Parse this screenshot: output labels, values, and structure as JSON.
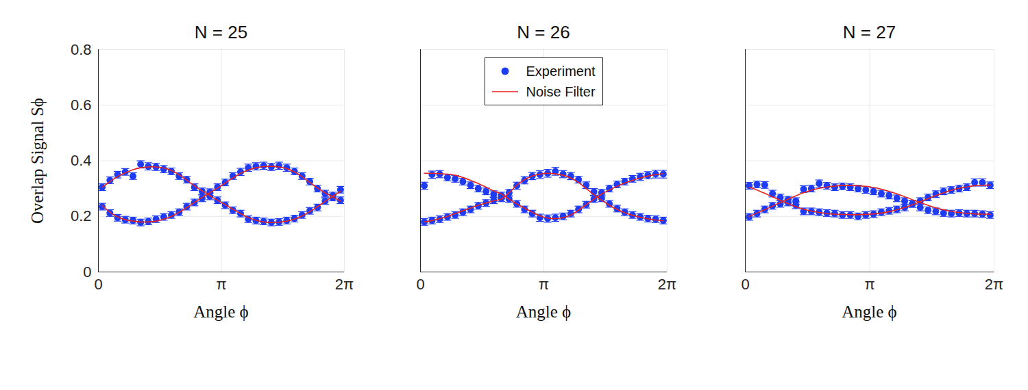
{
  "chart_data": [
    {
      "type": "scatter",
      "title": "N = 25",
      "xlabel": "Angle ϕ",
      "ylabel": "Overlap Signal Sϕ",
      "xlim": [
        0,
        6.28319
      ],
      "xticks": [
        0,
        {
          "value": 3.14159,
          "label": "π"
        },
        {
          "value": 6.28319,
          "label": "2π"
        }
      ],
      "ylim": [
        0,
        0.8
      ],
      "yticks": [
        0,
        0.2,
        0.4,
        0.6,
        0.8
      ],
      "grid": true,
      "x": [
        0.098,
        0.295,
        0.491,
        0.687,
        0.884,
        1.08,
        1.276,
        1.473,
        1.669,
        1.865,
        2.062,
        2.258,
        2.454,
        2.651,
        2.847,
        3.043,
        3.24,
        3.436,
        3.632,
        3.829,
        4.025,
        4.221,
        4.418,
        4.614,
        4.811,
        5.007,
        5.203,
        5.4,
        5.596,
        5.792,
        5.989,
        6.185
      ],
      "series": [
        {
          "name": "Experiment",
          "type": "scatter",
          "marker": "circle",
          "color": "#1f3cf5",
          "values": [
            0.305,
            0.33,
            0.35,
            0.36,
            0.345,
            0.387,
            0.38,
            0.378,
            0.37,
            0.362,
            0.345,
            0.332,
            0.305,
            0.29,
            0.272,
            0.258,
            0.24,
            0.222,
            0.21,
            0.19,
            0.185,
            0.182,
            0.178,
            0.18,
            0.185,
            0.192,
            0.205,
            0.22,
            0.232,
            0.255,
            0.275,
            0.296
          ],
          "errors": [
            0.012,
            0.012,
            0.012,
            0.012,
            0.012,
            0.013,
            0.013,
            0.013,
            0.013,
            0.012,
            0.012,
            0.012,
            0.012,
            0.012,
            0.012,
            0.012,
            0.012,
            0.012,
            0.012,
            0.012,
            0.012,
            0.012,
            0.012,
            0.012,
            0.012,
            0.012,
            0.012,
            0.012,
            0.012,
            0.012,
            0.012,
            0.012
          ]
        },
        {
          "name": "Experiment",
          "type": "scatter",
          "marker": "circle",
          "color": "#1f3cf5",
          "values": [
            0.235,
            0.212,
            0.195,
            0.188,
            0.185,
            0.178,
            0.182,
            0.19,
            0.198,
            0.205,
            0.215,
            0.235,
            0.25,
            0.265,
            0.287,
            0.305,
            0.322,
            0.345,
            0.36,
            0.375,
            0.38,
            0.382,
            0.378,
            0.382,
            0.375,
            0.362,
            0.345,
            0.325,
            0.3,
            0.282,
            0.268,
            0.258
          ],
          "errors": [
            0.012,
            0.012,
            0.012,
            0.012,
            0.012,
            0.012,
            0.012,
            0.012,
            0.012,
            0.012,
            0.012,
            0.012,
            0.012,
            0.012,
            0.012,
            0.012,
            0.012,
            0.012,
            0.013,
            0.013,
            0.013,
            0.013,
            0.013,
            0.013,
            0.013,
            0.012,
            0.012,
            0.012,
            0.012,
            0.012,
            0.012,
            0.012
          ]
        },
        {
          "name": "Noise Filter",
          "type": "line",
          "line_style": "solid",
          "color": "#e8231c",
          "values": [
            0.305,
            0.325,
            0.343,
            0.357,
            0.368,
            0.375,
            0.378,
            0.378,
            0.374,
            0.365,
            0.35,
            0.33,
            0.31,
            0.292,
            0.275,
            0.258,
            0.242,
            0.226,
            0.21,
            0.196,
            0.186,
            0.18,
            0.178,
            0.179,
            0.183,
            0.19,
            0.202,
            0.217,
            0.235,
            0.254,
            0.272,
            0.29
          ]
        },
        {
          "name": "Noise Filter",
          "type": "line",
          "line_style": "solid",
          "color": "#e8231c",
          "values": [
            0.24,
            0.215,
            0.198,
            0.188,
            0.183,
            0.18,
            0.18,
            0.183,
            0.19,
            0.2,
            0.215,
            0.232,
            0.25,
            0.268,
            0.285,
            0.302,
            0.32,
            0.338,
            0.355,
            0.367,
            0.375,
            0.379,
            0.38,
            0.378,
            0.372,
            0.36,
            0.343,
            0.322,
            0.302,
            0.285,
            0.27,
            0.255
          ]
        }
      ]
    },
    {
      "type": "scatter",
      "title": "N = 26",
      "xlabel": "Angle ϕ",
      "tick_labels": "x",
      "legend": "top",
      "xlim": [
        0,
        6.28319
      ],
      "xticks": [
        0,
        {
          "value": 3.14159,
          "label": "π"
        },
        {
          "value": 6.28319,
          "label": "2π"
        }
      ],
      "ylim": [
        0,
        0.8
      ],
      "yticks": [
        0,
        0.2,
        0.4,
        0.6,
        0.8
      ],
      "grid": true,
      "x": [
        0.098,
        0.295,
        0.491,
        0.687,
        0.884,
        1.08,
        1.276,
        1.473,
        1.669,
        1.865,
        2.062,
        2.258,
        2.454,
        2.651,
        2.847,
        3.043,
        3.24,
        3.436,
        3.632,
        3.829,
        4.025,
        4.221,
        4.418,
        4.614,
        4.811,
        5.007,
        5.203,
        5.4,
        5.596,
        5.792,
        5.989,
        6.185
      ],
      "series": [
        {
          "name": "Experiment",
          "type": "scatter",
          "marker": "circle",
          "color": "#1f3cf5",
          "values": [
            0.31,
            0.35,
            0.352,
            0.34,
            0.335,
            0.325,
            0.312,
            0.3,
            0.29,
            0.28,
            0.275,
            0.262,
            0.245,
            0.225,
            0.21,
            0.195,
            0.192,
            0.195,
            0.2,
            0.21,
            0.225,
            0.242,
            0.262,
            0.285,
            0.3,
            0.315,
            0.325,
            0.335,
            0.342,
            0.348,
            0.352,
            0.352
          ],
          "errors": [
            0.013,
            0.013,
            0.013,
            0.012,
            0.012,
            0.012,
            0.012,
            0.012,
            0.012,
            0.012,
            0.012,
            0.012,
            0.012,
            0.012,
            0.012,
            0.013,
            0.013,
            0.013,
            0.012,
            0.012,
            0.012,
            0.012,
            0.012,
            0.012,
            0.012,
            0.012,
            0.012,
            0.012,
            0.013,
            0.013,
            0.014,
            0.014
          ]
        },
        {
          "name": "Experiment",
          "type": "scatter",
          "marker": "circle",
          "color": "#1f3cf5",
          "values": [
            0.18,
            0.185,
            0.19,
            0.198,
            0.205,
            0.215,
            0.225,
            0.238,
            0.248,
            0.258,
            0.265,
            0.285,
            0.31,
            0.33,
            0.345,
            0.35,
            0.355,
            0.362,
            0.352,
            0.345,
            0.332,
            0.312,
            0.288,
            0.265,
            0.245,
            0.228,
            0.215,
            0.205,
            0.198,
            0.192,
            0.19,
            0.185
          ],
          "errors": [
            0.012,
            0.012,
            0.012,
            0.012,
            0.012,
            0.012,
            0.012,
            0.012,
            0.012,
            0.012,
            0.012,
            0.012,
            0.013,
            0.013,
            0.013,
            0.014,
            0.014,
            0.014,
            0.013,
            0.013,
            0.012,
            0.012,
            0.012,
            0.012,
            0.012,
            0.012,
            0.012,
            0.012,
            0.012,
            0.012,
            0.012,
            0.012
          ]
        },
        {
          "name": "Noise Filter",
          "type": "line",
          "line_style": "solid",
          "color": "#e8231c",
          "values": [
            0.355,
            0.355,
            0.354,
            0.352,
            0.348,
            0.34,
            0.33,
            0.318,
            0.305,
            0.292,
            0.28,
            0.262,
            0.245,
            0.23,
            0.215,
            0.202,
            0.194,
            0.192,
            0.195,
            0.205,
            0.222,
            0.242,
            0.262,
            0.28,
            0.295,
            0.308,
            0.32,
            0.33,
            0.338,
            0.345,
            0.35,
            0.354
          ]
        },
        {
          "name": "Noise Filter",
          "type": "line",
          "line_style": "solid",
          "color": "#e8231c",
          "values": [
            0.18,
            0.185,
            0.192,
            0.2,
            0.21,
            0.22,
            0.23,
            0.24,
            0.248,
            0.256,
            0.262,
            0.285,
            0.312,
            0.332,
            0.345,
            0.352,
            0.355,
            0.353,
            0.348,
            0.338,
            0.322,
            0.3,
            0.278,
            0.258,
            0.24,
            0.225,
            0.213,
            0.204,
            0.197,
            0.191,
            0.187,
            0.184
          ]
        }
      ]
    },
    {
      "type": "scatter",
      "title": "N = 27",
      "xlabel": "Angle ϕ",
      "tick_labels": "x",
      "xlim": [
        0,
        6.28319
      ],
      "xticks": [
        0,
        {
          "value": 3.14159,
          "label": "π"
        },
        {
          "value": 6.28319,
          "label": "2π"
        }
      ],
      "ylim": [
        0,
        0.8
      ],
      "yticks": [
        0,
        0.2,
        0.4,
        0.6,
        0.8
      ],
      "grid": true,
      "x": [
        0.098,
        0.295,
        0.491,
        0.687,
        0.884,
        1.08,
        1.276,
        1.473,
        1.669,
        1.865,
        2.062,
        2.258,
        2.454,
        2.651,
        2.847,
        3.043,
        3.24,
        3.436,
        3.632,
        3.829,
        4.025,
        4.221,
        4.418,
        4.614,
        4.811,
        5.007,
        5.203,
        5.4,
        5.596,
        5.792,
        5.989,
        6.185
      ],
      "series": [
        {
          "name": "Experiment",
          "type": "scatter",
          "marker": "circle",
          "color": "#1f3cf5",
          "values": [
            0.31,
            0.315,
            0.313,
            0.282,
            0.268,
            0.25,
            0.24,
            0.218,
            0.218,
            0.215,
            0.212,
            0.21,
            0.205,
            0.205,
            0.2,
            0.205,
            0.208,
            0.215,
            0.22,
            0.225,
            0.232,
            0.245,
            0.255,
            0.268,
            0.28,
            0.29,
            0.295,
            0.3,
            0.305,
            0.322,
            0.322,
            0.312
          ],
          "errors": [
            0.012,
            0.012,
            0.012,
            0.012,
            0.012,
            0.012,
            0.012,
            0.012,
            0.012,
            0.012,
            0.012,
            0.012,
            0.012,
            0.012,
            0.012,
            0.012,
            0.012,
            0.012,
            0.012,
            0.012,
            0.012,
            0.012,
            0.012,
            0.012,
            0.012,
            0.012,
            0.012,
            0.012,
            0.012,
            0.013,
            0.013,
            0.012
          ]
        },
        {
          "name": "Experiment",
          "type": "scatter",
          "marker": "circle",
          "color": "#1f3cf5",
          "values": [
            0.198,
            0.21,
            0.225,
            0.238,
            0.245,
            0.26,
            0.255,
            0.298,
            0.3,
            0.318,
            0.31,
            0.305,
            0.308,
            0.305,
            0.3,
            0.295,
            0.29,
            0.282,
            0.275,
            0.265,
            0.255,
            0.245,
            0.232,
            0.222,
            0.218,
            0.212,
            0.21,
            0.212,
            0.21,
            0.21,
            0.208,
            0.205
          ],
          "errors": [
            0.012,
            0.012,
            0.012,
            0.012,
            0.012,
            0.012,
            0.012,
            0.012,
            0.012,
            0.013,
            0.012,
            0.012,
            0.012,
            0.012,
            0.012,
            0.012,
            0.012,
            0.012,
            0.012,
            0.012,
            0.012,
            0.012,
            0.012,
            0.012,
            0.012,
            0.012,
            0.012,
            0.012,
            0.012,
            0.012,
            0.012,
            0.012
          ]
        },
        {
          "name": "Noise Filter",
          "type": "line",
          "line_style": "solid",
          "color": "#e8231c",
          "values": [
            0.305,
            0.295,
            0.283,
            0.27,
            0.258,
            0.246,
            0.235,
            0.226,
            0.219,
            0.214,
            0.21,
            0.208,
            0.207,
            0.206,
            0.206,
            0.207,
            0.209,
            0.212,
            0.217,
            0.224,
            0.232,
            0.242,
            0.253,
            0.264,
            0.275,
            0.285,
            0.294,
            0.301,
            0.306,
            0.31,
            0.312,
            0.313
          ]
        },
        {
          "name": "Noise Filter",
          "type": "line",
          "line_style": "solid",
          "color": "#e8231c",
          "values": [
            0.2,
            0.212,
            0.224,
            0.237,
            0.25,
            0.262,
            0.274,
            0.285,
            0.294,
            0.301,
            0.306,
            0.309,
            0.311,
            0.311,
            0.31,
            0.308,
            0.304,
            0.298,
            0.29,
            0.281,
            0.271,
            0.26,
            0.25,
            0.24,
            0.231,
            0.224,
            0.218,
            0.214,
            0.211,
            0.209,
            0.208,
            0.208
          ]
        }
      ]
    }
  ]
}
